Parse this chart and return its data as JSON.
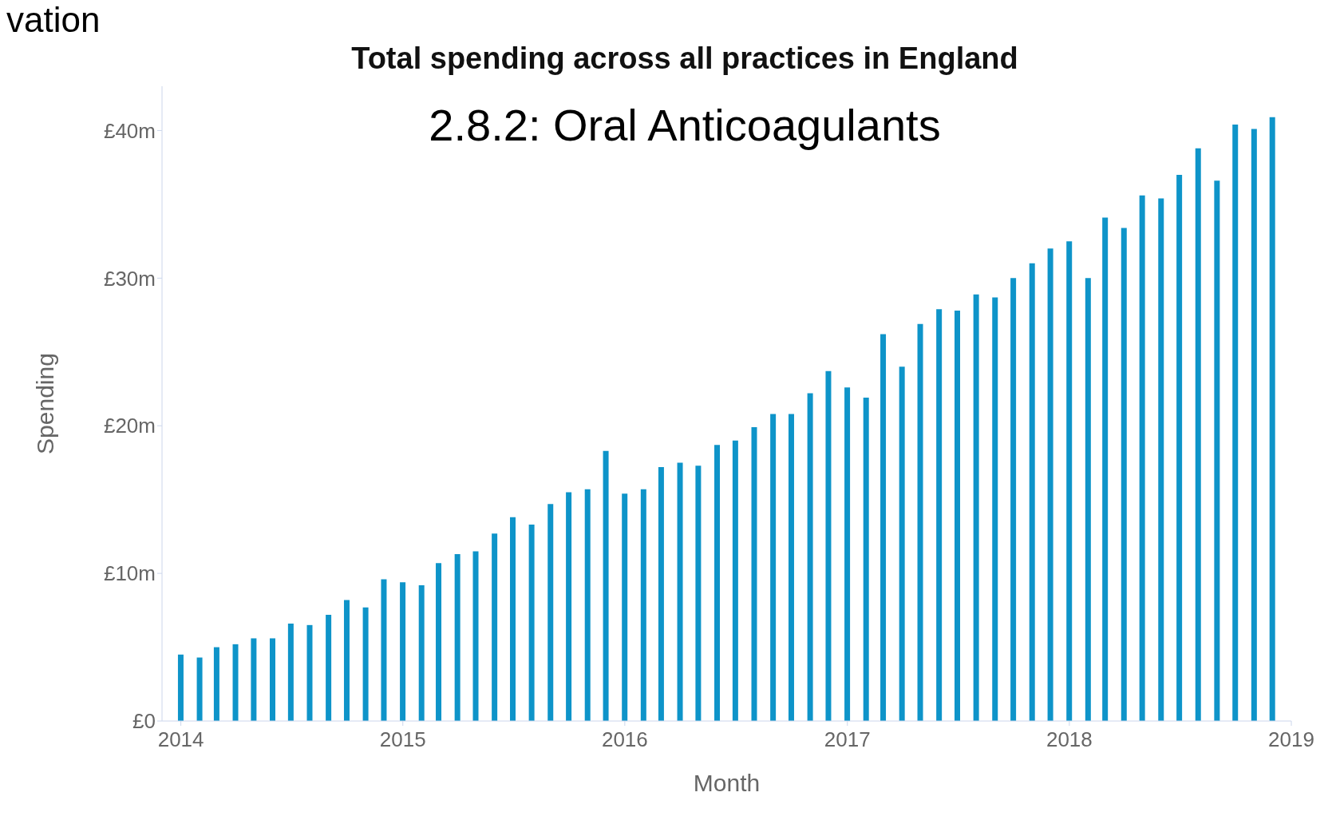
{
  "chart_data": {
    "type": "bar",
    "title": "Total spending across all practices in England",
    "subtitle": "2.8.2: Oral Anticoagulants",
    "xlabel": "Month",
    "ylabel": "Spending",
    "annotations": [
      "vation"
    ],
    "x": [
      "2014-01",
      "2014-02",
      "2014-03",
      "2014-04",
      "2014-05",
      "2014-06",
      "2014-07",
      "2014-08",
      "2014-09",
      "2014-10",
      "2014-11",
      "2014-12",
      "2015-01",
      "2015-02",
      "2015-03",
      "2015-04",
      "2015-05",
      "2015-06",
      "2015-07",
      "2015-08",
      "2015-09",
      "2015-10",
      "2015-11",
      "2015-12",
      "2016-01",
      "2016-02",
      "2016-03",
      "2016-04",
      "2016-05",
      "2016-06",
      "2016-07",
      "2016-08",
      "2016-09",
      "2016-10",
      "2016-11",
      "2016-12",
      "2017-01",
      "2017-02",
      "2017-03",
      "2017-04",
      "2017-05",
      "2017-06",
      "2017-07",
      "2017-08",
      "2017-09",
      "2017-10",
      "2017-11",
      "2017-12",
      "2018-01",
      "2018-02",
      "2018-03",
      "2018-04",
      "2018-05",
      "2018-06",
      "2018-07",
      "2018-08",
      "2018-09",
      "2018-10",
      "2018-11",
      "2018-12"
    ],
    "values": [
      4.5,
      4.3,
      5.0,
      5.2,
      5.6,
      5.6,
      6.6,
      6.5,
      7.2,
      8.2,
      7.7,
      9.6,
      9.4,
      9.2,
      10.7,
      11.3,
      11.5,
      12.7,
      13.8,
      13.3,
      14.7,
      15.5,
      15.7,
      18.3,
      15.4,
      15.7,
      17.2,
      17.5,
      17.3,
      18.7,
      19.0,
      19.9,
      20.8,
      20.8,
      22.2,
      23.7,
      22.6,
      21.9,
      26.2,
      24.0,
      26.9,
      27.9,
      27.8,
      28.9,
      28.7,
      30.0,
      31.0,
      32.0,
      32.5,
      30.0,
      34.1,
      33.4,
      35.6,
      35.4,
      37.0,
      38.8,
      36.6,
      40.4,
      40.1,
      40.9
    ],
    "color": "#0e94c9",
    "xlim": [
      "2013-12",
      "2019-01"
    ],
    "xticks": [
      "2014",
      "2015",
      "2016",
      "2017",
      "2018",
      "2019"
    ],
    "ylim": [
      0,
      43
    ],
    "yticks": [
      {
        "value": 0,
        "label": "£0"
      },
      {
        "value": 10,
        "label": "£10m"
      },
      {
        "value": 20,
        "label": "£20m"
      },
      {
        "value": 30,
        "label": "£30m"
      },
      {
        "value": 40,
        "label": "£40m"
      }
    ]
  }
}
